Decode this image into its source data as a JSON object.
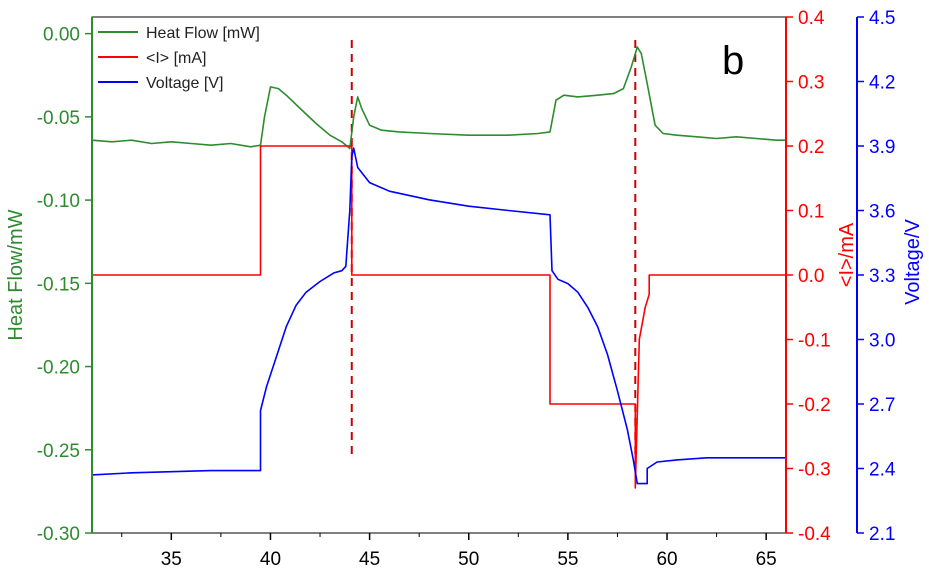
{
  "chart_data": {
    "type": "line",
    "panel_label": "b",
    "x": {
      "lim": [
        31,
        66
      ],
      "ticks": [
        35,
        40,
        45,
        50,
        55,
        60,
        65
      ],
      "tick_labels": [
        "35",
        "40",
        "45",
        "50",
        "55",
        "60",
        "65"
      ],
      "label": ""
    },
    "axes": {
      "heat": {
        "label": "Heat Flow/mW",
        "color": "#2e8b2e",
        "lim": [
          -0.3,
          0.01
        ],
        "ticks": [
          0.0,
          -0.05,
          -0.1,
          -0.15,
          -0.2,
          -0.25,
          -0.3
        ],
        "tick_labels": [
          "0.00",
          "-0.05",
          "-0.10",
          "-0.15",
          "-0.20",
          "-0.25",
          "-0.30"
        ]
      },
      "current": {
        "label": "<I>/mA",
        "color": "#ff0000",
        "lim": [
          -0.4,
          0.4
        ],
        "ticks": [
          0.4,
          0.3,
          0.2,
          0.1,
          0.0,
          -0.1,
          -0.2,
          -0.3,
          -0.4
        ],
        "tick_labels": [
          "0.4",
          "0.3",
          "0.2",
          "0.1",
          "0.0",
          "-0.1",
          "-0.2",
          "-0.3",
          "-0.4"
        ]
      },
      "voltage": {
        "label": "Voltage/V",
        "color": "#0000ff",
        "lim": [
          2.1,
          4.5
        ],
        "ticks": [
          4.5,
          4.2,
          3.9,
          3.6,
          3.3,
          3.0,
          2.7,
          2.4,
          2.1
        ],
        "tick_labels": [
          "4.5",
          "4.2",
          "3.9",
          "3.6",
          "3.3",
          "3.0",
          "2.7",
          "2.4",
          "2.1"
        ]
      }
    },
    "legend": {
      "placement": "top-left",
      "entries": [
        {
          "label": "Heat Flow [mW]",
          "color": "#2e8b2e"
        },
        {
          "label": "<I> [mA]",
          "color": "#ff0000"
        },
        {
          "label": "Voltage [V]",
          "color": "#0000ff"
        }
      ]
    },
    "markers": [
      {
        "x": 44.1,
        "style": "dashed",
        "color": "#cc0000"
      },
      {
        "x": 58.4,
        "style": "dashed",
        "color": "#cc0000"
      }
    ],
    "series": [
      {
        "name": "Heat Flow [mW]",
        "axis": "heat",
        "color": "#2e8b2e",
        "points": [
          [
            31,
            -0.064
          ],
          [
            32,
            -0.065
          ],
          [
            33,
            -0.064
          ],
          [
            34,
            -0.066
          ],
          [
            35,
            -0.065
          ],
          [
            36,
            -0.066
          ],
          [
            37,
            -0.067
          ],
          [
            38,
            -0.066
          ],
          [
            39,
            -0.068
          ],
          [
            39.5,
            -0.067
          ],
          [
            39.7,
            -0.05
          ],
          [
            40,
            -0.032
          ],
          [
            40.4,
            -0.033
          ],
          [
            40.8,
            -0.037
          ],
          [
            41.5,
            -0.045
          ],
          [
            42.3,
            -0.054
          ],
          [
            43,
            -0.061
          ],
          [
            43.6,
            -0.065
          ],
          [
            44.0,
            -0.069
          ],
          [
            44.2,
            -0.05
          ],
          [
            44.4,
            -0.038
          ],
          [
            44.6,
            -0.045
          ],
          [
            45,
            -0.055
          ],
          [
            45.6,
            -0.058
          ],
          [
            46.5,
            -0.059
          ],
          [
            48,
            -0.06
          ],
          [
            50,
            -0.061
          ],
          [
            52,
            -0.061
          ],
          [
            53.5,
            -0.06
          ],
          [
            54.1,
            -0.059
          ],
          [
            54.4,
            -0.04
          ],
          [
            54.8,
            -0.037
          ],
          [
            55.5,
            -0.038
          ],
          [
            56.5,
            -0.037
          ],
          [
            57.3,
            -0.036
          ],
          [
            57.8,
            -0.033
          ],
          [
            58.2,
            -0.02
          ],
          [
            58.5,
            -0.008
          ],
          [
            58.7,
            -0.012
          ],
          [
            59.0,
            -0.03
          ],
          [
            59.4,
            -0.055
          ],
          [
            59.8,
            -0.06
          ],
          [
            60.5,
            -0.061
          ],
          [
            61.5,
            -0.062
          ],
          [
            62.5,
            -0.063
          ],
          [
            63.5,
            -0.062
          ],
          [
            64.5,
            -0.063
          ],
          [
            65.5,
            -0.064
          ],
          [
            66,
            -0.064
          ]
        ]
      },
      {
        "name": "<I> [mA]",
        "axis": "current",
        "color": "#ff0000",
        "points": [
          [
            31,
            0.0
          ],
          [
            39.5,
            0.0
          ],
          [
            39.5,
            0.2
          ],
          [
            44.1,
            0.2
          ],
          [
            44.1,
            0.0
          ],
          [
            54.1,
            0.0
          ],
          [
            54.1,
            -0.2
          ],
          [
            58.4,
            -0.2
          ],
          [
            58.4,
            -0.33
          ],
          [
            58.6,
            -0.1
          ],
          [
            58.9,
            -0.05
          ],
          [
            59.1,
            -0.03
          ],
          [
            59.1,
            0.0
          ],
          [
            66,
            0.0
          ]
        ]
      },
      {
        "name": "Voltage [V]",
        "axis": "voltage",
        "color": "#0000ff",
        "points": [
          [
            31,
            2.37
          ],
          [
            33,
            2.38
          ],
          [
            35,
            2.385
          ],
          [
            37,
            2.39
          ],
          [
            39.5,
            2.39
          ],
          [
            39.5,
            2.67
          ],
          [
            39.8,
            2.78
          ],
          [
            40.3,
            2.92
          ],
          [
            40.8,
            3.06
          ],
          [
            41.3,
            3.16
          ],
          [
            41.8,
            3.22
          ],
          [
            42.5,
            3.27
          ],
          [
            43.2,
            3.31
          ],
          [
            43.6,
            3.32
          ],
          [
            43.8,
            3.34
          ],
          [
            44.0,
            3.6
          ],
          [
            44.1,
            3.85
          ],
          [
            44.2,
            3.89
          ],
          [
            44.4,
            3.8
          ],
          [
            45,
            3.73
          ],
          [
            46,
            3.69
          ],
          [
            48,
            3.65
          ],
          [
            50,
            3.62
          ],
          [
            52,
            3.6
          ],
          [
            54.1,
            3.58
          ],
          [
            54.2,
            3.32
          ],
          [
            54.5,
            3.28
          ],
          [
            55,
            3.26
          ],
          [
            55.5,
            3.22
          ],
          [
            56,
            3.15
          ],
          [
            56.5,
            3.06
          ],
          [
            57,
            2.93
          ],
          [
            57.5,
            2.76
          ],
          [
            58,
            2.58
          ],
          [
            58.3,
            2.44
          ],
          [
            58.5,
            2.33
          ],
          [
            59.0,
            2.33
          ],
          [
            59.0,
            2.4
          ],
          [
            59.5,
            2.43
          ],
          [
            60.5,
            2.44
          ],
          [
            62,
            2.45
          ],
          [
            64,
            2.45
          ],
          [
            66,
            2.45
          ]
        ]
      }
    ]
  }
}
